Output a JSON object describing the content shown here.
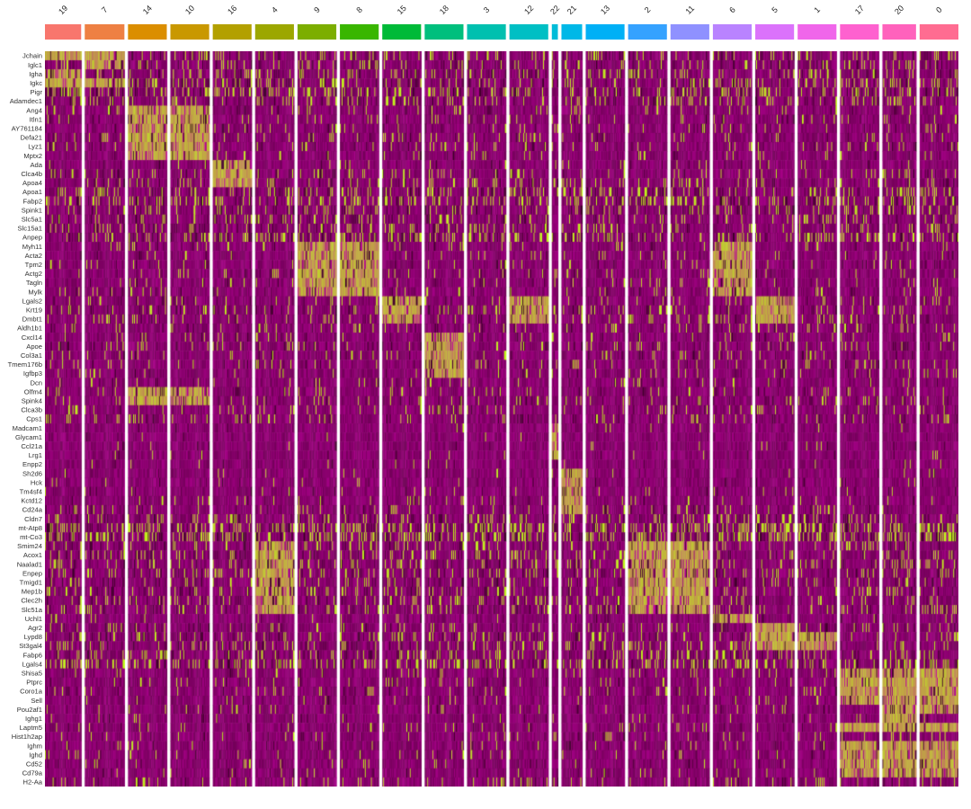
{
  "chart_data": {
    "type": "heatmap",
    "title": "",
    "xlabel": "",
    "ylabel": "",
    "clusters": [
      {
        "id": "19",
        "color": "#F8766D",
        "cells": 42
      },
      {
        "id": "7",
        "color": "#EE8043",
        "cells": 46
      },
      {
        "id": "14",
        "color": "#DB8E00",
        "cells": 45
      },
      {
        "id": "10",
        "color": "#C99800",
        "cells": 45
      },
      {
        "id": "16",
        "color": "#B3A000",
        "cells": 45
      },
      {
        "id": "4",
        "color": "#9CA700",
        "cells": 45
      },
      {
        "id": "9",
        "color": "#7CAE00",
        "cells": 45
      },
      {
        "id": "8",
        "color": "#39B600",
        "cells": 45
      },
      {
        "id": "15",
        "color": "#00BA38",
        "cells": 45
      },
      {
        "id": "18",
        "color": "#00BF7D",
        "cells": 45
      },
      {
        "id": "3",
        "color": "#00C0AF",
        "cells": 45
      },
      {
        "id": "12",
        "color": "#00BFC4",
        "cells": 45
      },
      {
        "id": "22",
        "color": "#00BCD8",
        "cells": 7
      },
      {
        "id": "21",
        "color": "#00B8E7",
        "cells": 24
      },
      {
        "id": "13",
        "color": "#00B0F6",
        "cells": 45
      },
      {
        "id": "2",
        "color": "#35A2FF",
        "cells": 45
      },
      {
        "id": "11",
        "color": "#8F91FF",
        "cells": 45
      },
      {
        "id": "6",
        "color": "#B983FF",
        "cells": 45
      },
      {
        "id": "5",
        "color": "#DB72FB",
        "cells": 45
      },
      {
        "id": "1",
        "color": "#F066EA",
        "cells": 45
      },
      {
        "id": "17",
        "color": "#FE61CF",
        "cells": 45
      },
      {
        "id": "20",
        "color": "#FF62BC",
        "cells": 39
      },
      {
        "id": "0",
        "color": "#FF6C91",
        "cells": 45
      }
    ],
    "genes": [
      {
        "name": "Jchain",
        "high": [
          "19",
          "7"
        ],
        "bg": 0.3
      },
      {
        "name": "Iglc1",
        "high": [
          "7"
        ],
        "bg": 0.3
      },
      {
        "name": "Igha",
        "high": [
          "19"
        ],
        "bg": 0.35
      },
      {
        "name": "Igkc",
        "high": [
          "19",
          "7"
        ],
        "bg": 0.4
      },
      {
        "name": "Pigr",
        "high": [],
        "bg": 0.55
      },
      {
        "name": "Adamdec1",
        "high": [],
        "bg": 0.32
      },
      {
        "name": "Ang4",
        "high": [
          "14",
          "10"
        ],
        "bg": 0.15
      },
      {
        "name": "Itln1",
        "high": [
          "14",
          "10"
        ],
        "bg": 0.15
      },
      {
        "name": "AY761184",
        "high": [
          "14",
          "10"
        ],
        "bg": 0.15
      },
      {
        "name": "Defa21",
        "high": [
          "14",
          "10"
        ],
        "bg": 0.15
      },
      {
        "name": "Lyz1",
        "high": [
          "14",
          "10"
        ],
        "bg": 0.15
      },
      {
        "name": "Mptx2",
        "high": [
          "14",
          "10"
        ],
        "bg": 0.12
      },
      {
        "name": "Ada",
        "high": [
          "16"
        ],
        "bg": 0.1
      },
      {
        "name": "Clca4b",
        "high": [
          "16"
        ],
        "bg": 0.22
      },
      {
        "name": "Apoa4",
        "high": [
          "16"
        ],
        "bg": 0.25
      },
      {
        "name": "Apoa1",
        "high": [],
        "bg": 0.4
      },
      {
        "name": "Fabp2",
        "high": [],
        "bg": 0.42
      },
      {
        "name": "Spink1",
        "high": [],
        "bg": 0.35
      },
      {
        "name": "Slc5a1",
        "high": [],
        "bg": 0.32
      },
      {
        "name": "Slc15a1",
        "high": [],
        "bg": 0.28
      },
      {
        "name": "Anpep",
        "high": [],
        "bg": 0.45
      },
      {
        "name": "Myh11",
        "high": [
          "9",
          "8",
          "6"
        ],
        "bg": 0.12
      },
      {
        "name": "Acta2",
        "high": [
          "9",
          "8",
          "6"
        ],
        "bg": 0.12
      },
      {
        "name": "Tpm2",
        "high": [
          "9",
          "8",
          "6"
        ],
        "bg": 0.12
      },
      {
        "name": "Actg2",
        "high": [
          "9",
          "8",
          "6"
        ],
        "bg": 0.12
      },
      {
        "name": "Tagln",
        "high": [
          "9",
          "8",
          "6"
        ],
        "bg": 0.12
      },
      {
        "name": "Mylk",
        "high": [
          "9",
          "8",
          "6"
        ],
        "bg": 0.12
      },
      {
        "name": "Lgals2",
        "high": [
          "15",
          "12",
          "5"
        ],
        "bg": 0.2
      },
      {
        "name": "Krt19",
        "high": [
          "15",
          "12",
          "5"
        ],
        "bg": 0.3
      },
      {
        "name": "Dmbt1",
        "high": [
          "15",
          "12",
          "5"
        ],
        "bg": 0.22
      },
      {
        "name": "Aldh1b1",
        "high": [],
        "bg": 0.18
      },
      {
        "name": "Cxcl14",
        "high": [
          "18"
        ],
        "bg": 0.12
      },
      {
        "name": "Apoe",
        "high": [
          "18"
        ],
        "bg": 0.25
      },
      {
        "name": "Col3a1",
        "high": [
          "18"
        ],
        "bg": 0.15
      },
      {
        "name": "Tmem176b",
        "high": [
          "18"
        ],
        "bg": 0.15
      },
      {
        "name": "Igfbp3",
        "high": [
          "18"
        ],
        "bg": 0.12
      },
      {
        "name": "Dcn",
        "high": [],
        "bg": 0.1
      },
      {
        "name": "Olfm4",
        "high": [
          "14",
          "10"
        ],
        "bg": 0.15
      },
      {
        "name": "Spink4",
        "high": [
          "14",
          "10"
        ],
        "bg": 0.18
      },
      {
        "name": "Clca3b",
        "high": [],
        "bg": 0.18
      },
      {
        "name": "Cps1",
        "high": [],
        "bg": 0.2
      },
      {
        "name": "Madcam1",
        "high": [
          "22"
        ],
        "bg": 0.02
      },
      {
        "name": "Glycam1",
        "high": [
          "22"
        ],
        "bg": 0.02
      },
      {
        "name": "Ccl21a",
        "high": [
          "22"
        ],
        "bg": 0.04
      },
      {
        "name": "Lrg1",
        "high": [
          "22"
        ],
        "bg": 0.04
      },
      {
        "name": "Enpp2",
        "high": [],
        "bg": 0.04
      },
      {
        "name": "Sh2d6",
        "high": [
          "21"
        ],
        "bg": 0.04
      },
      {
        "name": "Hck",
        "high": [
          "21"
        ],
        "bg": 0.05
      },
      {
        "name": "Tm4sf4",
        "high": [
          "21"
        ],
        "bg": 0.08
      },
      {
        "name": "Kctd12",
        "high": [
          "21"
        ],
        "bg": 0.1
      },
      {
        "name": "Cd24a",
        "high": [
          "21"
        ],
        "bg": 0.14
      },
      {
        "name": "Cldn7",
        "high": [],
        "bg": 0.35
      },
      {
        "name": "mt-Atp8",
        "high": [],
        "bg": 0.6
      },
      {
        "name": "mt-Co3",
        "high": [],
        "bg": 0.7
      },
      {
        "name": "Smim24",
        "high": [
          "4",
          "2",
          "11"
        ],
        "bg": 0.3
      },
      {
        "name": "Acox1",
        "high": [
          "4",
          "2",
          "11"
        ],
        "bg": 0.3
      },
      {
        "name": "Naalad1",
        "high": [
          "4",
          "2",
          "11"
        ],
        "bg": 0.28
      },
      {
        "name": "Enpep",
        "high": [
          "4",
          "2",
          "11"
        ],
        "bg": 0.28
      },
      {
        "name": "Tmigd1",
        "high": [
          "4",
          "2",
          "11"
        ],
        "bg": 0.28
      },
      {
        "name": "Mep1b",
        "high": [
          "4",
          "2",
          "11"
        ],
        "bg": 0.28
      },
      {
        "name": "Clec2h",
        "high": [
          "4",
          "2",
          "11"
        ],
        "bg": 0.28
      },
      {
        "name": "Slc51a",
        "high": [
          "4",
          "2",
          "11"
        ],
        "bg": 0.28
      },
      {
        "name": "Uchl1",
        "high": [
          "6"
        ],
        "bg": 0.05
      },
      {
        "name": "Agr2",
        "high": [
          "5"
        ],
        "bg": 0.25
      },
      {
        "name": "Lypd8",
        "high": [
          "5",
          "1"
        ],
        "bg": 0.3
      },
      {
        "name": "St3gal4",
        "high": [
          "5",
          "1"
        ],
        "bg": 0.3
      },
      {
        "name": "Fabp6",
        "high": [],
        "bg": 0.35
      },
      {
        "name": "Lgals4",
        "high": [],
        "bg": 0.5
      },
      {
        "name": "Shisa5",
        "high": [
          "17",
          "20",
          "0"
        ],
        "bg": 0.12
      },
      {
        "name": "Ptprc",
        "high": [
          "17",
          "20",
          "0"
        ],
        "bg": 0.1
      },
      {
        "name": "Coro1a",
        "high": [
          "17",
          "20",
          "0"
        ],
        "bg": 0.1
      },
      {
        "name": "Sell",
        "high": [
          "17",
          "20",
          "0"
        ],
        "bg": 0.08
      },
      {
        "name": "Pou2af1",
        "high": [
          "20",
          "0"
        ],
        "bg": 0.08
      },
      {
        "name": "Ighg1",
        "high": [
          "20"
        ],
        "bg": 0.08
      },
      {
        "name": "Laptm5",
        "high": [
          "17",
          "20",
          "0"
        ],
        "bg": 0.1
      },
      {
        "name": "Hist1h2ap",
        "high": [],
        "bg": 0.1
      },
      {
        "name": "Ighm",
        "high": [
          "17",
          "20",
          "0"
        ],
        "bg": 0.1
      },
      {
        "name": "Ighd",
        "high": [
          "17",
          "20",
          "0"
        ],
        "bg": 0.08
      },
      {
        "name": "Cd52",
        "high": [
          "17",
          "20",
          "0"
        ],
        "bg": 0.1
      },
      {
        "name": "Cd79a",
        "high": [
          "17",
          "20",
          "0"
        ],
        "bg": 0.08
      },
      {
        "name": "H2-Aa",
        "high": [],
        "bg": 0.2
      }
    ],
    "color_scale": {
      "low": "#000000",
      "mid": "#FF00FF",
      "high": "#FFFF00"
    },
    "legend": "none",
    "grid": false
  }
}
